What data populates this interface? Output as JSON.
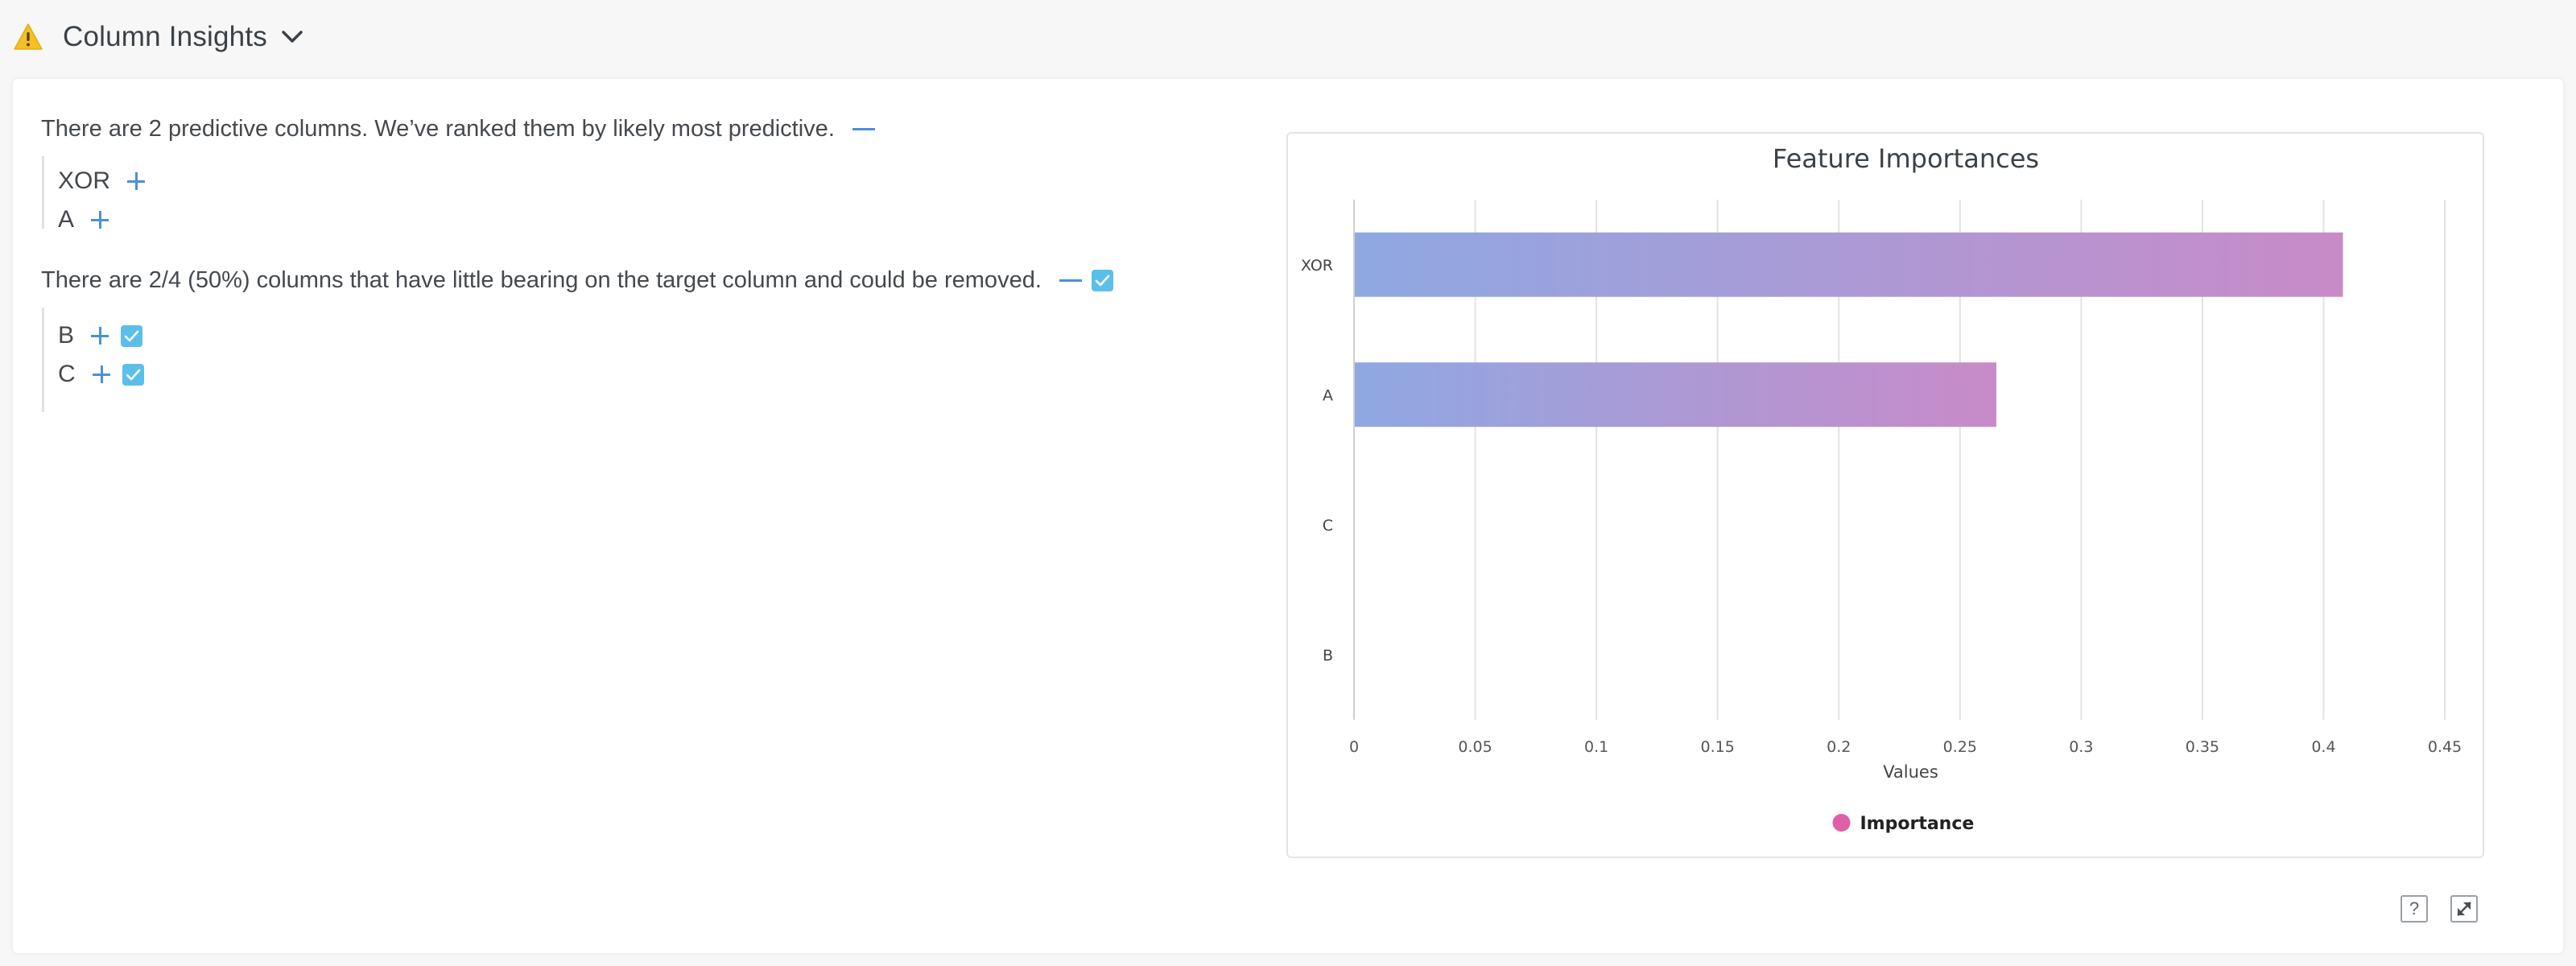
{
  "header": {
    "title": "Column Insights",
    "warning_icon": "warning-triangle-icon",
    "chevron_icon": "chevron-down-icon"
  },
  "predictive": {
    "sentence": "There are 2 predictive columns. We’ve ranked them by likely most predictive.",
    "columns": [
      "XOR",
      "A"
    ]
  },
  "removable": {
    "sentence": "There are 2/4 (50%) columns that have little bearing on the target column and could be removed.",
    "columns": [
      "B",
      "C"
    ],
    "all_checked": true
  },
  "chart_data": {
    "type": "bar",
    "orientation": "horizontal",
    "title": "Feature Importances",
    "categories": [
      "XOR",
      "A",
      "C",
      "B"
    ],
    "series": [
      {
        "name": "Importance",
        "values": [
          0.408,
          0.265,
          0,
          0
        ]
      }
    ],
    "xlabel": "Values",
    "ylabel": "",
    "xlim": [
      0,
      0.45
    ],
    "xticks": [
      "0",
      "0.05",
      "0.1",
      "0.15",
      "0.2",
      "0.25",
      "0.3",
      "0.35",
      "0.4",
      "0.45"
    ],
    "grid": true,
    "legend_position": "bottom",
    "colors": {
      "gradient_start": "#8fa8e2",
      "gradient_end": "#c88bc8",
      "legend_dot": "#e05fa6",
      "grid": "#e3e3e3"
    }
  },
  "footer": {
    "help_label": "?",
    "help_icon": "help-icon",
    "expand_icon": "expand-icon"
  }
}
